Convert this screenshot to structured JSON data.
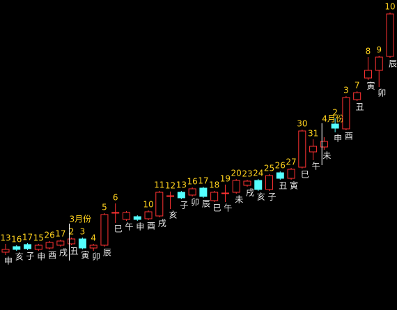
{
  "chart_data": {
    "type": "candlestick",
    "up_color": "#ff3232",
    "down_color": "#54ffff",
    "day_color": "#ffd21e",
    "branch_color": "#e8e8e8",
    "ylim": [
      0,
      445
    ],
    "candles": [
      {
        "day": "13",
        "branch": "申",
        "open": 83,
        "close": 87,
        "high": 95,
        "low": 79
      },
      {
        "day": "16",
        "branch": "亥",
        "open": 91,
        "close": 87,
        "high": 93,
        "low": 85
      },
      {
        "day": "17",
        "branch": "子",
        "open": 94,
        "close": 88,
        "high": 96,
        "low": 86
      },
      {
        "day": "15",
        "branch": "申",
        "open": 87,
        "close": 93,
        "high": 95,
        "low": 85
      },
      {
        "day": "26",
        "branch": "酉",
        "open": 89,
        "close": 97,
        "high": 99,
        "low": 87
      },
      {
        "day": "17",
        "branch": "戌",
        "open": 93,
        "close": 99,
        "high": 101,
        "low": 91
      },
      {
        "day": "2",
        "branch": "丑",
        "month": "3月份",
        "open": 95,
        "close": 102,
        "high": 104,
        "low": 93
      },
      {
        "day": "3",
        "branch": "寅",
        "open": 102,
        "close": 89,
        "high": 104,
        "low": 87
      },
      {
        "day": "4",
        "branch": "卯",
        "open": 89,
        "close": 93,
        "high": 95,
        "low": 85
      },
      {
        "day": "5",
        "branch": "辰",
        "open": 93,
        "close": 137,
        "high": 139,
        "low": 91
      },
      {
        "day": "6",
        "branch": "巳",
        "open": 140,
        "close": 140,
        "high": 153,
        "low": 125
      },
      {
        "day": null,
        "branch": "午",
        "open": 130,
        "close": 140,
        "high": 142,
        "low": 128
      },
      {
        "day": null,
        "branch": "申",
        "open": 134,
        "close": 130,
        "high": 136,
        "low": 128
      },
      {
        "day": "10",
        "branch": "酉",
        "open": 131,
        "close": 141,
        "high": 143,
        "low": 129
      },
      {
        "day": "11",
        "branch": "戌",
        "open": 135,
        "close": 169,
        "high": 171,
        "low": 133
      },
      {
        "day": "12",
        "branch": "亥",
        "open": 164,
        "close": 164,
        "high": 170,
        "low": 145
      },
      {
        "day": "13",
        "branch": "子",
        "open": 169,
        "close": 161,
        "high": 171,
        "low": 159
      },
      {
        "day": "16",
        "branch": "卯",
        "open": 165,
        "close": 174,
        "high": 176,
        "low": 163
      },
      {
        "day": "17",
        "branch": "辰",
        "open": 175,
        "close": 163,
        "high": 177,
        "low": 161
      },
      {
        "day": "18",
        "branch": "巳",
        "open": 157,
        "close": 169,
        "high": 171,
        "low": 155
      },
      {
        "day": "19",
        "branch": "午",
        "open": 168,
        "close": 168,
        "high": 180,
        "low": 155
      },
      {
        "day": "20",
        "branch": "未",
        "open": 169,
        "close": 186,
        "high": 188,
        "low": 167
      },
      {
        "day": "23",
        "branch": "戌",
        "open": 179,
        "close": 185,
        "high": 187,
        "low": 177
      },
      {
        "day": "24",
        "branch": "亥",
        "open": 186,
        "close": 173,
        "high": 188,
        "low": 171
      },
      {
        "day": "25",
        "branch": "子",
        "open": 173,
        "close": 193,
        "high": 195,
        "low": 171
      },
      {
        "day": "26",
        "branch": "丑",
        "open": 197,
        "close": 189,
        "high": 199,
        "low": 187
      },
      {
        "day": "27",
        "branch": "寅",
        "open": 189,
        "close": 202,
        "high": 204,
        "low": 187
      },
      {
        "day": "30",
        "branch": "巳",
        "open": 205,
        "close": 257,
        "high": 259,
        "low": 203
      },
      {
        "day": "31",
        "branch": "午",
        "open": 227,
        "close": 235,
        "high": 245,
        "low": 215
      },
      {
        "day": null,
        "branch": "未",
        "month": "4月份",
        "open": 234,
        "close": 242,
        "high": 248,
        "low": 230
      },
      {
        "day": "2",
        "branch": "申",
        "open": 267,
        "close": 261,
        "high": 275,
        "low": 255
      },
      {
        "day": "3",
        "branch": "酉",
        "open": 260,
        "close": 305,
        "high": 307,
        "low": 258
      },
      {
        "day": "7",
        "branch": "丑",
        "open": 302,
        "close": 312,
        "high": 314,
        "low": 300
      },
      {
        "day": "8",
        "branch": "寅",
        "open": 333,
        "close": 344,
        "high": 363,
        "low": 330
      },
      {
        "day": "9",
        "branch": "卯",
        "open": 344,
        "close": 363,
        "high": 365,
        "low": 320
      },
      {
        "day": "10",
        "branch": "辰",
        "open": 364,
        "close": 425,
        "high": 427,
        "low": 362
      }
    ]
  }
}
